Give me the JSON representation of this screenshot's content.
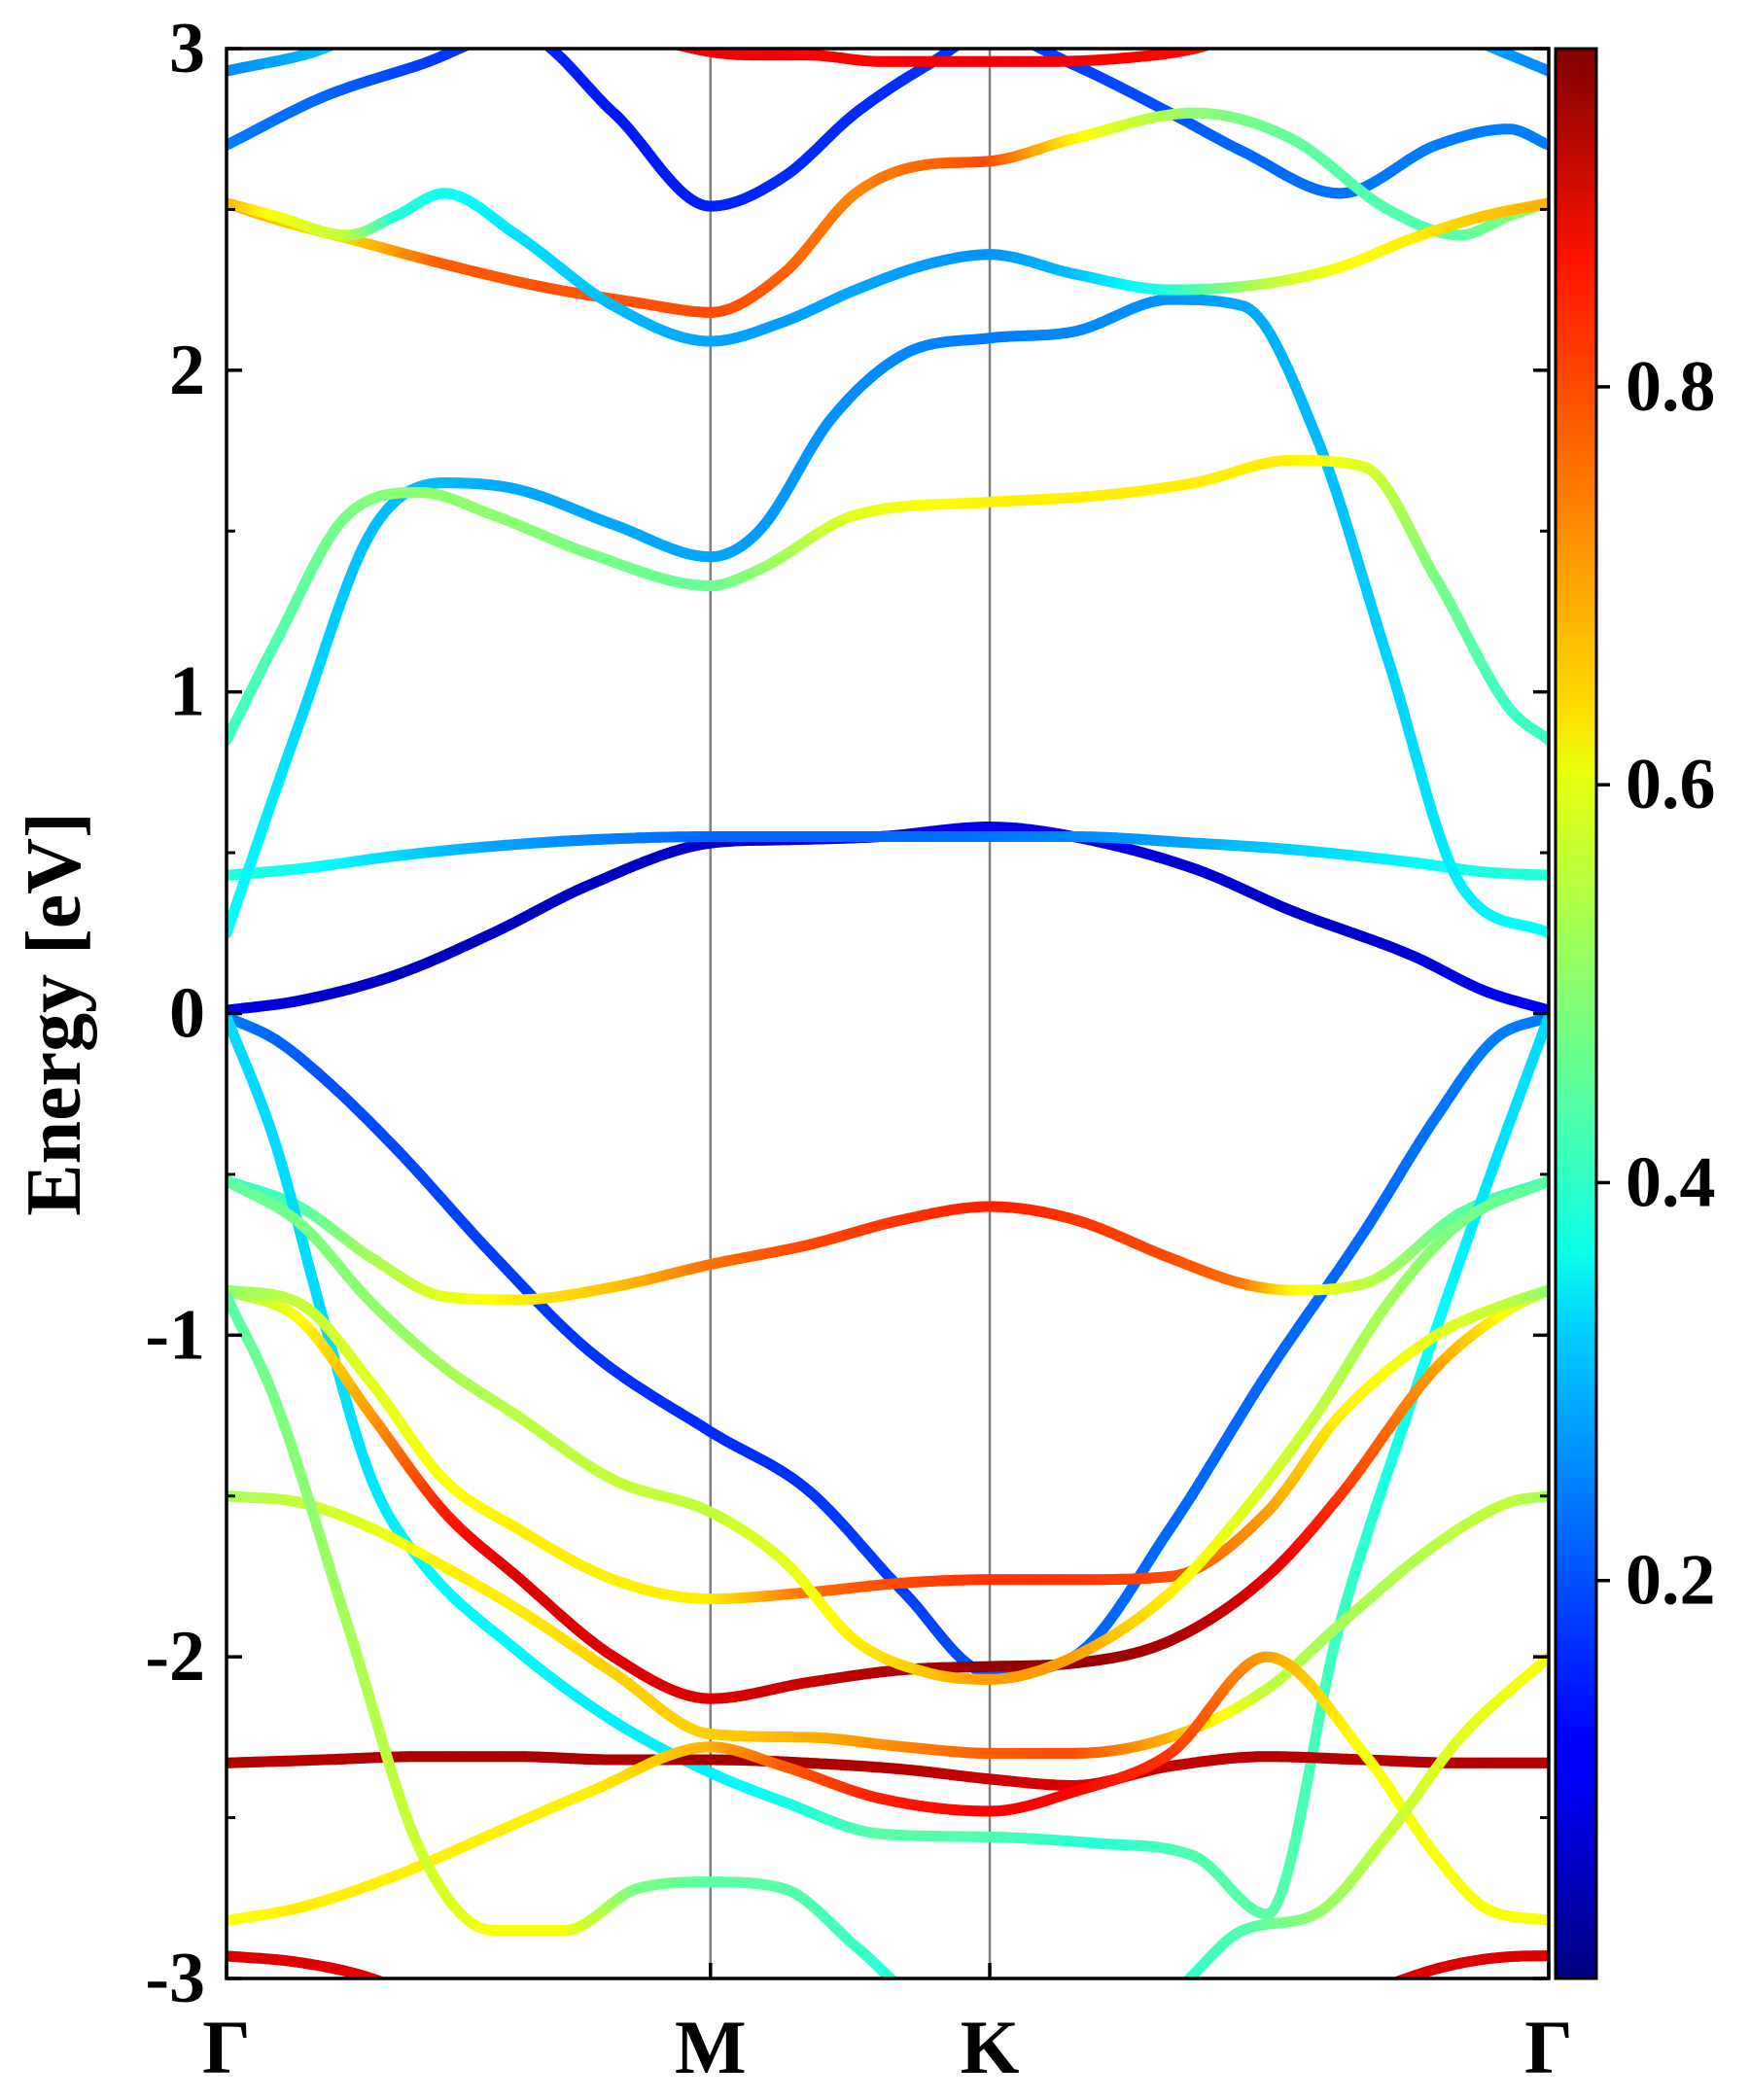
{
  "chart_data": {
    "type": "line",
    "title": "",
    "xlabel": "",
    "ylabel": "Energy [eV]",
    "ylim": [
      -3,
      3
    ],
    "yticks": [
      "3",
      "2",
      "1",
      "0",
      "-1",
      "-2",
      "-3"
    ],
    "ytick_values": [
      3,
      2,
      1,
      0,
      -1,
      -2,
      -3
    ],
    "xticks": [
      "Γ",
      "M",
      "K",
      "Γ"
    ],
    "xtick_positions": [
      0,
      1,
      1.577,
      2.732
    ],
    "vertical_lines_at": [
      1,
      1.577
    ],
    "grid": false,
    "colormap": "jet",
    "colorbar": {
      "range": [
        0,
        0.97
      ],
      "ticks": [
        "0.2",
        "0.4",
        "0.6",
        "0.8"
      ],
      "tick_values": [
        0.2,
        0.4,
        0.6,
        0.8
      ]
    },
    "series": [
      {
        "k": [
          0,
          0.15,
          0.35,
          0.55,
          0.75,
          1.0,
          1.15,
          1.35,
          1.577,
          1.75,
          2.0,
          2.2,
          2.45,
          2.6,
          2.732
        ],
        "E": [
          0.01,
          0.04,
          0.12,
          0.25,
          0.4,
          0.53,
          0.54,
          0.55,
          0.58,
          0.55,
          0.45,
          0.32,
          0.18,
          0.07,
          0.01
        ],
        "c": [
          0.1,
          0.08,
          0.06,
          0.06,
          0.06,
          0.07,
          0.08,
          0.09,
          0.1,
          0.1,
          0.08,
          0.07,
          0.08,
          0.1,
          0.12
        ]
      },
      {
        "k": [
          0,
          0.15,
          0.35,
          0.55,
          0.75,
          1.0,
          1.15,
          1.35,
          1.577,
          1.75,
          2.0,
          2.2,
          2.45,
          2.6,
          2.732
        ],
        "E": [
          0.43,
          0.45,
          0.49,
          0.52,
          0.54,
          0.55,
          0.55,
          0.55,
          0.55,
          0.55,
          0.53,
          0.51,
          0.47,
          0.44,
          0.43
        ],
        "c": [
          0.4,
          0.38,
          0.33,
          0.28,
          0.25,
          0.22,
          0.22,
          0.22,
          0.23,
          0.25,
          0.28,
          0.32,
          0.36,
          0.39,
          0.4
        ]
      },
      {
        "k": [
          0,
          0.15,
          0.3,
          0.45,
          0.6,
          0.8,
          1.0,
          1.1,
          1.25,
          1.4,
          1.577,
          1.75,
          1.95,
          2.1,
          2.25,
          2.4,
          2.55,
          2.732
        ],
        "E": [
          0.25,
          0.9,
          1.5,
          1.65,
          1.63,
          1.52,
          1.42,
          1.5,
          1.85,
          2.05,
          2.1,
          2.12,
          2.22,
          2.2,
          1.8,
          1.1,
          0.4,
          0.25
        ],
        "c": [
          0.37,
          0.33,
          0.3,
          0.3,
          0.28,
          0.28,
          0.28,
          0.27,
          0.26,
          0.25,
          0.24,
          0.25,
          0.26,
          0.28,
          0.3,
          0.32,
          0.35,
          0.37
        ]
      },
      {
        "k": [
          0,
          0.1,
          0.25,
          0.4,
          0.55,
          0.75,
          1.0,
          1.1,
          1.3,
          1.577,
          1.8,
          2.0,
          2.2,
          2.35,
          2.5,
          2.65,
          2.732
        ],
        "E": [
          0.85,
          1.15,
          1.55,
          1.62,
          1.55,
          1.43,
          1.33,
          1.38,
          1.55,
          1.59,
          1.61,
          1.65,
          1.72,
          1.7,
          1.35,
          0.95,
          0.85
        ],
        "c": [
          0.42,
          0.44,
          0.48,
          0.5,
          0.5,
          0.48,
          0.46,
          0.5,
          0.58,
          0.62,
          0.62,
          0.62,
          0.62,
          0.58,
          0.48,
          0.42,
          0.42
        ]
      },
      {
        "k": [
          0,
          0.2,
          0.4,
          0.6,
          0.8,
          1.0,
          1.15,
          1.3,
          1.45,
          1.577,
          1.75,
          1.95,
          2.1,
          2.3,
          2.5,
          2.65,
          2.732
        ],
        "E": [
          2.7,
          2.85,
          2.95,
          3.05,
          2.8,
          2.51,
          2.6,
          2.8,
          2.95,
          3.05,
          2.95,
          2.8,
          2.68,
          2.55,
          2.7,
          2.75,
          2.7
        ],
        "c": [
          0.24,
          0.22,
          0.18,
          0.16,
          0.14,
          0.15,
          0.16,
          0.16,
          0.17,
          0.17,
          0.18,
          0.2,
          0.22,
          0.23,
          0.24,
          0.24,
          0.24
        ]
      },
      {
        "k": [
          0,
          0.1,
          0.25,
          0.45,
          0.65,
          0.85,
          1.0,
          1.15,
          1.3,
          1.45,
          1.577,
          1.75,
          2.0,
          2.2,
          2.4,
          2.55,
          2.65,
          2.732
        ],
        "E": [
          2.52,
          2.47,
          2.41,
          2.33,
          2.26,
          2.21,
          2.18,
          2.3,
          2.55,
          2.64,
          2.65,
          2.72,
          2.8,
          2.72,
          2.5,
          2.42,
          2.48,
          2.52
        ],
        "c": [
          0.7,
          0.66,
          0.64,
          0.76,
          0.77,
          0.77,
          0.78,
          0.76,
          0.72,
          0.75,
          0.78,
          0.62,
          0.5,
          0.46,
          0.44,
          0.45,
          0.48,
          0.52
        ]
      },
      {
        "k": [
          0,
          0.1,
          0.25,
          0.35,
          0.45,
          0.6,
          0.8,
          1.0,
          1.15,
          1.3,
          1.45,
          1.577,
          1.75,
          1.95,
          2.15,
          2.3,
          2.45,
          2.6,
          2.732
        ],
        "E": [
          2.52,
          2.48,
          2.42,
          2.48,
          2.55,
          2.42,
          2.2,
          2.09,
          2.15,
          2.25,
          2.33,
          2.36,
          2.3,
          2.25,
          2.27,
          2.32,
          2.41,
          2.48,
          2.52
        ],
        "c": [
          0.68,
          0.6,
          0.55,
          0.4,
          0.38,
          0.34,
          0.3,
          0.28,
          0.27,
          0.28,
          0.27,
          0.26,
          0.3,
          0.4,
          0.54,
          0.6,
          0.62,
          0.66,
          0.68
        ]
      },
      {
        "k": [
          0,
          0.2,
          0.4,
          0.55,
          0.7,
          0.85,
          1.0,
          1.1,
          1.2,
          1.35,
          1.5,
          1.577,
          1.7,
          1.85,
          2.0,
          2.1,
          2.2,
          2.35,
          2.5,
          2.732
        ],
        "E": [
          2.93,
          3.0,
          3.15,
          3.2,
          3.15,
          3.05,
          2.99,
          2.98,
          2.98,
          2.96,
          2.96,
          2.96,
          2.96,
          2.97,
          3.0,
          3.05,
          3.12,
          3.2,
          3.08,
          2.93
        ],
        "c": [
          0.25,
          0.3,
          0.5,
          0.7,
          0.8,
          0.85,
          0.86,
          0.86,
          0.85,
          0.85,
          0.86,
          0.86,
          0.86,
          0.85,
          0.84,
          0.8,
          0.7,
          0.5,
          0.3,
          0.25
        ]
      },
      {
        "k": [
          0,
          0.1,
          0.2,
          0.35,
          0.55,
          0.75,
          1.0,
          1.2,
          1.4,
          1.577,
          1.75,
          1.95,
          2.15,
          2.35,
          2.5,
          2.62,
          2.732
        ],
        "E": [
          -0.01,
          -0.08,
          -0.2,
          -0.42,
          -0.75,
          -1.05,
          -1.3,
          -1.48,
          -1.8,
          -2.05,
          -2.0,
          -1.6,
          -1.12,
          -0.68,
          -0.32,
          -0.08,
          -0.01
        ],
        "c": [
          0.24,
          0.22,
          0.2,
          0.19,
          0.18,
          0.17,
          0.16,
          0.17,
          0.18,
          0.2,
          0.22,
          0.22,
          0.22,
          0.22,
          0.23,
          0.24,
          0.24
        ]
      },
      {
        "k": [
          0,
          0.15,
          0.3,
          0.45,
          0.6,
          0.8,
          1.0,
          1.2,
          1.4,
          1.577,
          1.75,
          1.95,
          2.1,
          2.2,
          2.35,
          2.55,
          2.732
        ],
        "E": [
          -0.52,
          -0.6,
          -0.76,
          -0.88,
          -0.89,
          -0.85,
          -0.78,
          -0.72,
          -0.64,
          -0.6,
          -0.64,
          -0.76,
          -0.84,
          -0.86,
          -0.84,
          -0.62,
          -0.52
        ],
        "c": [
          0.4,
          0.44,
          0.52,
          0.58,
          0.62,
          0.66,
          0.74,
          0.78,
          0.8,
          0.82,
          0.8,
          0.78,
          0.74,
          0.62,
          0.55,
          0.45,
          0.4
        ]
      },
      {
        "k": [
          0,
          0.1,
          0.2,
          0.3,
          0.4,
          0.6,
          0.8,
          1.0,
          1.15,
          1.35,
          1.577,
          1.8,
          2.0,
          2.15,
          2.3,
          2.45,
          2.6,
          2.732
        ],
        "E": [
          -0.01,
          -0.4,
          -0.95,
          -1.45,
          -1.7,
          -1.98,
          -2.2,
          -2.36,
          -2.45,
          -2.55,
          -2.56,
          -2.58,
          -2.62,
          -2.8,
          -1.9,
          -1.2,
          -0.55,
          -0.01
        ],
        "c": [
          0.33,
          0.33,
          0.33,
          0.34,
          0.36,
          0.36,
          0.35,
          0.35,
          0.38,
          0.45,
          0.44,
          0.4,
          0.44,
          0.45,
          0.42,
          0.38,
          0.34,
          0.33
        ]
      },
      {
        "k": [
          0,
          0.15,
          0.3,
          0.45,
          0.6,
          0.8,
          1.0,
          1.2,
          1.4,
          1.577,
          1.75,
          1.95,
          2.15,
          2.3,
          2.5,
          2.65,
          2.732
        ],
        "E": [
          -0.86,
          -0.95,
          -1.25,
          -1.55,
          -1.75,
          -2.0,
          -2.13,
          -2.08,
          -2.04,
          -2.03,
          -2.02,
          -1.95,
          -1.75,
          -1.5,
          -1.1,
          -0.92,
          -0.86
        ],
        "c": [
          0.5,
          0.6,
          0.7,
          0.82,
          0.88,
          0.88,
          0.88,
          0.9,
          0.93,
          0.95,
          0.95,
          0.93,
          0.88,
          0.8,
          0.7,
          0.6,
          0.55
        ]
      },
      {
        "k": [
          0,
          0.15,
          0.3,
          0.45,
          0.6,
          0.8,
          1.0,
          1.2,
          1.4,
          1.577,
          1.75,
          1.95,
          2.15,
          2.3,
          2.5,
          2.65,
          2.732
        ],
        "E": [
          -0.86,
          -0.9,
          -1.15,
          -1.45,
          -1.6,
          -1.76,
          -1.82,
          -1.8,
          -1.77,
          -1.76,
          -1.76,
          -1.75,
          -1.55,
          -1.25,
          -1.0,
          -0.9,
          -0.86
        ],
        "c": [
          0.5,
          0.55,
          0.58,
          0.6,
          0.62,
          0.62,
          0.62,
          0.74,
          0.78,
          0.8,
          0.8,
          0.78,
          0.7,
          0.62,
          0.58,
          0.55,
          0.5
        ]
      },
      {
        "k": [
          0,
          0.15,
          0.3,
          0.45,
          0.6,
          0.8,
          1.0,
          1.15,
          1.3,
          1.45,
          1.577,
          1.75,
          1.95,
          2.1,
          2.25,
          2.4,
          2.55,
          2.732
        ],
        "E": [
          -0.52,
          -0.65,
          -0.9,
          -1.1,
          -1.25,
          -1.45,
          -1.55,
          -1.7,
          -1.95,
          -2.05,
          -2.07,
          -2.0,
          -1.8,
          -1.55,
          -1.25,
          -0.9,
          -0.65,
          -0.52
        ],
        "c": [
          0.45,
          0.48,
          0.5,
          0.52,
          0.54,
          0.55,
          0.55,
          0.58,
          0.62,
          0.66,
          0.7,
          0.7,
          0.62,
          0.58,
          0.55,
          0.52,
          0.48,
          0.45
        ]
      },
      {
        "k": [
          0,
          0.15,
          0.3,
          0.45,
          0.6,
          0.8,
          1.0,
          1.2,
          1.4,
          1.577,
          1.75,
          1.95,
          2.15,
          2.3,
          2.5,
          2.65,
          2.732
        ],
        "E": [
          -1.5,
          -1.52,
          -1.6,
          -1.72,
          -1.85,
          -2.05,
          -2.24,
          -2.25,
          -2.28,
          -2.3,
          -2.3,
          -2.25,
          -2.1,
          -1.9,
          -1.65,
          -1.52,
          -1.5
        ],
        "c": [
          0.52,
          0.55,
          0.58,
          0.62,
          0.62,
          0.65,
          0.65,
          0.68,
          0.72,
          0.76,
          0.78,
          0.68,
          0.55,
          0.52,
          0.54,
          0.55,
          0.52
        ]
      },
      {
        "k": [
          0,
          0.2,
          0.4,
          0.6,
          0.8,
          1.0,
          1.2,
          1.4,
          1.577,
          1.75,
          1.95,
          2.15,
          2.35,
          2.55,
          2.732
        ],
        "E": [
          -2.33,
          -2.32,
          -2.31,
          -2.31,
          -2.32,
          -2.32,
          -2.33,
          -2.35,
          -2.38,
          -2.4,
          -2.34,
          -2.31,
          -2.32,
          -2.33,
          -2.33
        ],
        "c": [
          0.92,
          0.92,
          0.93,
          0.93,
          0.93,
          0.94,
          0.93,
          0.92,
          0.9,
          0.88,
          0.9,
          0.92,
          0.92,
          0.92,
          0.92
        ]
      },
      {
        "k": [
          0,
          0.15,
          0.35,
          0.55,
          0.75,
          1.0,
          1.15,
          1.35,
          1.577,
          1.75,
          1.95,
          2.15,
          2.35,
          2.5,
          2.6,
          2.732
        ],
        "E": [
          -2.82,
          -2.78,
          -2.68,
          -2.55,
          -2.42,
          -2.28,
          -2.34,
          -2.44,
          -2.48,
          -2.42,
          -2.3,
          -2.0,
          -2.3,
          -2.62,
          -2.78,
          -2.82
        ],
        "c": [
          0.6,
          0.62,
          0.62,
          0.62,
          0.62,
          0.68,
          0.76,
          0.82,
          0.85,
          0.85,
          0.8,
          0.7,
          0.6,
          0.6,
          0.6,
          0.6
        ]
      },
      {
        "k": [
          0,
          0.1,
          0.25,
          0.4,
          0.55,
          0.7,
          0.85,
          1.0,
          1.15,
          1.3,
          1.45,
          1.577,
          1.75,
          1.95,
          2.1,
          2.25,
          2.4,
          2.55,
          2.732
        ],
        "E": [
          -0.88,
          -1.2,
          -1.9,
          -2.6,
          -2.85,
          -2.85,
          -2.72,
          -2.7,
          -2.72,
          -2.9,
          -3.1,
          -3.2,
          -3.15,
          -3.05,
          -2.85,
          -2.8,
          -2.55,
          -2.25,
          -2.0
        ],
        "c": [
          0.44,
          0.48,
          0.52,
          0.56,
          0.6,
          0.6,
          0.48,
          0.45,
          0.45,
          0.42,
          0.38,
          0.36,
          0.38,
          0.4,
          0.44,
          0.5,
          0.55,
          0.58,
          0.6
        ]
      },
      {
        "k": [
          0,
          0.15,
          0.3,
          0.45,
          0.6,
          0.75,
          0.85,
          1.0
        ],
        "E": [
          -2.93,
          -2.95,
          -3.0,
          -3.1,
          -3.2,
          -3.25,
          -3.25,
          -3.22
        ],
        "c": [
          0.88,
          0.88,
          0.87,
          0.86,
          0.85,
          0.84,
          0.84,
          0.84
        ]
      },
      {
        "k": [
          2.25,
          2.4,
          2.5,
          2.6,
          2.7,
          2.732
        ],
        "E": [
          -3.1,
          -3.02,
          -2.97,
          -2.94,
          -2.93,
          -2.93
        ],
        "c": [
          0.86,
          0.87,
          0.88,
          0.88,
          0.88,
          0.88
        ]
      }
    ]
  }
}
